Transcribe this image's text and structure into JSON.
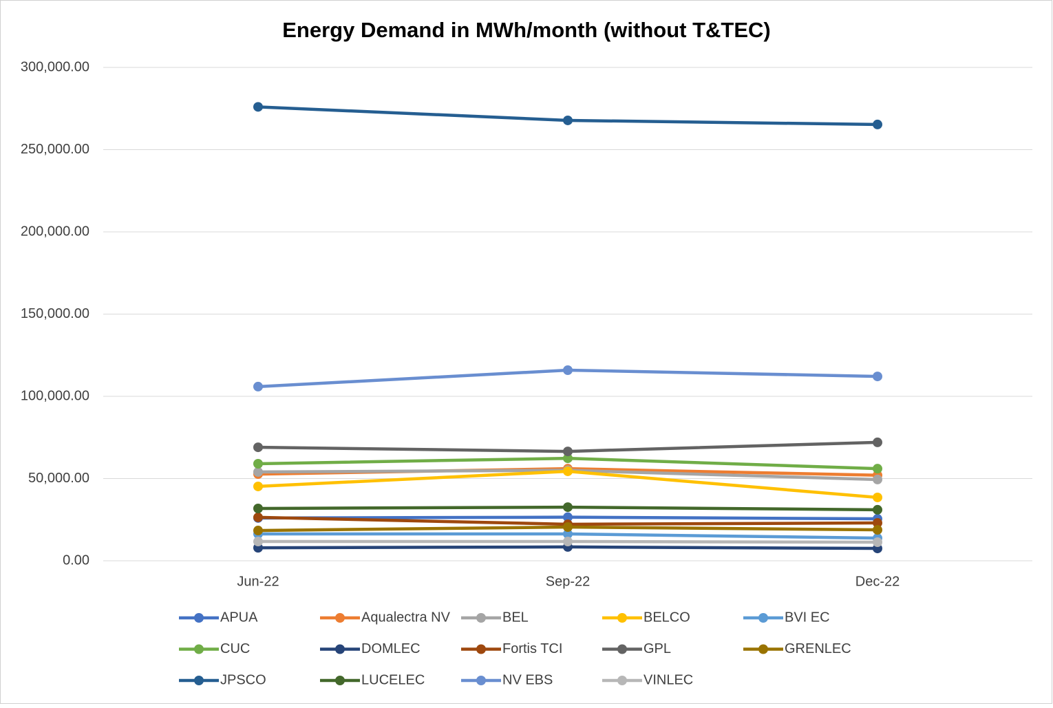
{
  "chart_data": {
    "type": "line",
    "title": "Energy Demand in MWh/month (without T&TEC)",
    "categories": [
      "Jun-22",
      "Sep-22",
      "Dec-22"
    ],
    "ylim": [
      0,
      300000
    ],
    "yticks": [
      {
        "value": 0,
        "label": "0.00"
      },
      {
        "value": 50000,
        "label": "50,000.00"
      },
      {
        "value": 100000,
        "label": "100,000.00"
      },
      {
        "value": 150000,
        "label": "150,000.00"
      },
      {
        "value": 200000,
        "label": "200,000.00"
      },
      {
        "value": 250000,
        "label": "250,000.00"
      },
      {
        "value": 300000,
        "label": "300,000.00"
      }
    ],
    "grid": true,
    "legend": "bottom",
    "series": [
      {
        "name": "APUA",
        "color": "#4472c4",
        "values": [
          26000,
          26500,
          25500
        ]
      },
      {
        "name": "Aqualectra NV",
        "color": "#ed7d31",
        "values": [
          52700,
          56000,
          52000
        ]
      },
      {
        "name": "BEL",
        "color": "#a5a5a5",
        "values": [
          54000,
          55000,
          49400
        ]
      },
      {
        "name": "BELCO",
        "color": "#ffc000",
        "values": [
          45200,
          54400,
          38500
        ]
      },
      {
        "name": "BVI EC",
        "color": "#5b9bd5",
        "values": [
          16300,
          16300,
          13800
        ]
      },
      {
        "name": "CUC",
        "color": "#70ad47",
        "values": [
          59000,
          62300,
          56000
        ]
      },
      {
        "name": "DOMLEC",
        "color": "#264478",
        "values": [
          7900,
          8400,
          7500
        ]
      },
      {
        "name": "Fortis TCI",
        "color": "#9e480e",
        "values": [
          26400,
          22200,
          23000
        ]
      },
      {
        "name": "GPL",
        "color": "#636363",
        "values": [
          69000,
          66500,
          72000
        ]
      },
      {
        "name": "GRENLEC",
        "color": "#997300",
        "values": [
          18400,
          20500,
          18800
        ]
      },
      {
        "name": "JPSCO",
        "color": "#255e91",
        "values": [
          276000,
          267800,
          265300
        ]
      },
      {
        "name": "LUCELEC",
        "color": "#43682b",
        "values": [
          31800,
          32600,
          31000
        ]
      },
      {
        "name": "NV EBS",
        "color": "#698ed0",
        "values": [
          105900,
          115900,
          112100
        ]
      },
      {
        "name": "VINLEC",
        "color": "#b7b7b7",
        "values": [
          11700,
          11700,
          11300
        ]
      }
    ]
  }
}
